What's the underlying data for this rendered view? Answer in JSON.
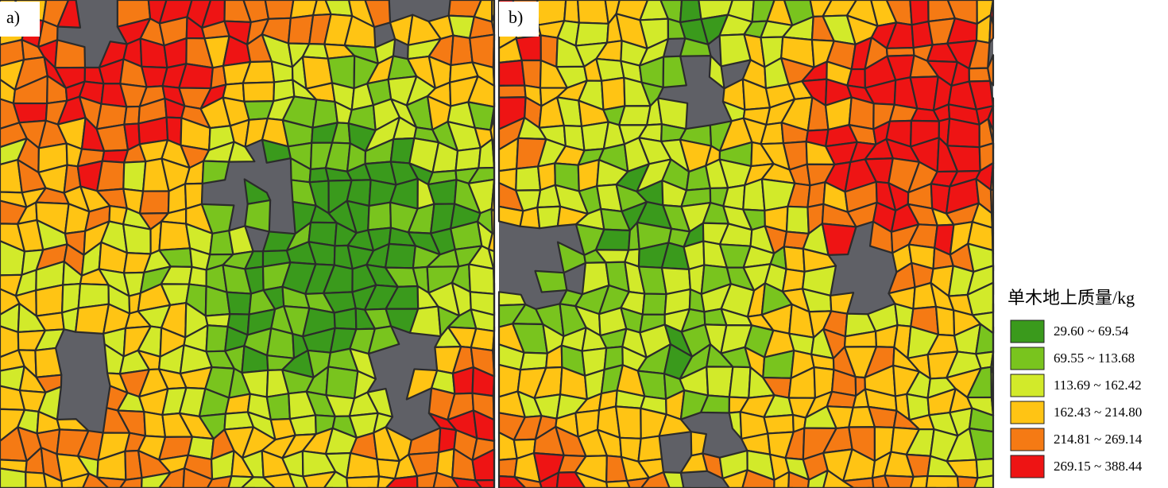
{
  "panels": [
    {
      "label": "a)"
    },
    {
      "label": "b)"
    }
  ],
  "legend": {
    "title": "单木地上质量/kg",
    "items": [
      {
        "label": "29.60 ~ 69.54",
        "color": "#3a9a1c"
      },
      {
        "label": "69.55 ~ 113.68",
        "color": "#79c41e"
      },
      {
        "label": "113.69 ~ 162.42",
        "color": "#d2ea2a"
      },
      {
        "label": "162.43 ~ 214.80",
        "color": "#ffc414"
      },
      {
        "label": "214.81 ~ 269.14",
        "color": "#f57a14"
      },
      {
        "label": "269.15 ~ 388.44",
        "color": "#ee1414"
      }
    ]
  }
}
